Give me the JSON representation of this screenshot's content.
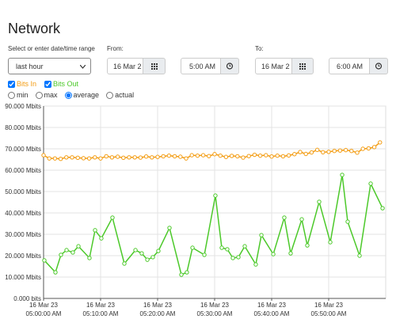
{
  "header": {
    "title": "Network"
  },
  "controls": {
    "range_label": "Select or enter date/time range",
    "range_select": "last hour",
    "from_label": "From:",
    "from_date": "16 Mar 2",
    "from_time": "5:00 AM",
    "to_label": "To:",
    "to_date": "16 Mar 2",
    "to_time": "6:00 AM",
    "series_checked": [
      true,
      true
    ],
    "modes": [
      {
        "label": "min",
        "checked": false
      },
      {
        "label": "max",
        "checked": false
      },
      {
        "label": "average",
        "checked": true
      },
      {
        "label": "actual",
        "checked": false
      }
    ]
  },
  "chart_data": {
    "type": "line",
    "xlim": [
      "2023-03-16 05:00:00",
      "2023-03-16 06:00:00"
    ],
    "xticks": [
      {
        "value": "2023-03-16 05:00:00",
        "label": [
          "16 Mar 23",
          "05:00:00 AM"
        ]
      },
      {
        "value": "2023-03-16 05:10:00",
        "label": [
          "16 Mar 23",
          "05:10:00 AM"
        ]
      },
      {
        "value": "2023-03-16 05:20:00",
        "label": [
          "16 Mar 23",
          "05:20:00 AM"
        ]
      },
      {
        "value": "2023-03-16 05:30:00",
        "label": [
          "16 Mar 23",
          "05:30:00 AM"
        ]
      },
      {
        "value": "2023-03-16 05:40:00",
        "label": [
          "16 Mar 23",
          "05:40:00 AM"
        ]
      },
      {
        "value": "2023-03-16 05:50:00",
        "label": [
          "16 Mar 23",
          "05:50:00 AM"
        ]
      }
    ],
    "ylim": [
      0,
      90
    ],
    "yticks": [
      {
        "value": 0,
        "label": "0.000 bits"
      },
      {
        "value": 10,
        "label": "10.000 Mbits"
      },
      {
        "value": 20,
        "label": "20.000 Mbits"
      },
      {
        "value": 30,
        "label": "30.000 Mbits"
      },
      {
        "value": 40,
        "label": "40.000 Mbits"
      },
      {
        "value": 50,
        "label": "50.000 Mbits"
      },
      {
        "value": 60,
        "label": "60.000 Mbits"
      },
      {
        "value": 70,
        "label": "70.000 Mbits"
      },
      {
        "value": 80,
        "label": "80.000 Mbits"
      },
      {
        "value": 90,
        "label": "90.000 Mbits"
      }
    ],
    "grid": true,
    "series": [
      {
        "name": "Bits In",
        "color": "#f39c12",
        "x": [
          "2023-03-16 05:00:00",
          "2023-03-16 05:01:00",
          "2023-03-16 05:02:00",
          "2023-03-16 05:03:00",
          "2023-03-16 05:04:00",
          "2023-03-16 05:05:00",
          "2023-03-16 05:06:00",
          "2023-03-16 05:07:00",
          "2023-03-16 05:08:00",
          "2023-03-16 05:09:00",
          "2023-03-16 05:10:00",
          "2023-03-16 05:11:00",
          "2023-03-16 05:12:00",
          "2023-03-16 05:13:00",
          "2023-03-16 05:14:00",
          "2023-03-16 05:15:00",
          "2023-03-16 05:16:00",
          "2023-03-16 05:17:00",
          "2023-03-16 05:18:00",
          "2023-03-16 05:19:00",
          "2023-03-16 05:20:00",
          "2023-03-16 05:21:00",
          "2023-03-16 05:22:00",
          "2023-03-16 05:23:00",
          "2023-03-16 05:24:00",
          "2023-03-16 05:25:00",
          "2023-03-16 05:26:00",
          "2023-03-16 05:27:00",
          "2023-03-16 05:28:00",
          "2023-03-16 05:29:00",
          "2023-03-16 05:30:00",
          "2023-03-16 05:31:00",
          "2023-03-16 05:32:00",
          "2023-03-16 05:33:00",
          "2023-03-16 05:34:00",
          "2023-03-16 05:35:00",
          "2023-03-16 05:36:00",
          "2023-03-16 05:37:00",
          "2023-03-16 05:38:00",
          "2023-03-16 05:39:00",
          "2023-03-16 05:40:00",
          "2023-03-16 05:41:00",
          "2023-03-16 05:42:00",
          "2023-03-16 05:43:00",
          "2023-03-16 05:44:00",
          "2023-03-16 05:45:00",
          "2023-03-16 05:46:00",
          "2023-03-16 05:47:00",
          "2023-03-16 05:48:00",
          "2023-03-16 05:49:00",
          "2023-03-16 05:50:00",
          "2023-03-16 05:51:00",
          "2023-03-16 05:52:00",
          "2023-03-16 05:53:00",
          "2023-03-16 05:54:00",
          "2023-03-16 05:55:00",
          "2023-03-16 05:56:00",
          "2023-03-16 05:57:00",
          "2023-03-16 05:58:00",
          "2023-03-16 05:59:00"
        ],
        "values": [
          67.0,
          65.5,
          65.5,
          65.3,
          66,
          66,
          65.8,
          65.6,
          65.5,
          66,
          65.5,
          66.5,
          66,
          66.3,
          65.8,
          66,
          66,
          65.9,
          66.4,
          66,
          66.2,
          66.5,
          66.8,
          66.5,
          66.3,
          65.5,
          67,
          66.8,
          67,
          66.6,
          67.5,
          66.8,
          66.2,
          66.7,
          66.5,
          65.9,
          66.6,
          67.2,
          66.8,
          67,
          66.4,
          66.8,
          66.5,
          66.9,
          67.5,
          68.5,
          67.6,
          68.3,
          69.5,
          68.4,
          68.6,
          69,
          69.2,
          69.4,
          69,
          68.2,
          70,
          70.2,
          70.8,
          73
        ]
      },
      {
        "name": "Bits Out",
        "color": "#4cc92a",
        "x": [
          "2023-03-16 05:00:08",
          "2023-03-16 05:02:05",
          "2023-03-16 05:03:03",
          "2023-03-16 05:04:02",
          "2023-03-16 05:05:08",
          "2023-03-16 05:06:07",
          "2023-03-16 05:08:03",
          "2023-03-16 05:09:02",
          "2023-03-16 05:10:08",
          "2023-03-16 05:12:05",
          "2023-03-16 05:14:10",
          "2023-03-16 05:16:07",
          "2023-03-16 05:17:13",
          "2023-03-16 05:18:12",
          "2023-03-16 05:19:10",
          "2023-03-16 05:20:08",
          "2023-03-16 05:22:05",
          "2023-03-16 05:24:10",
          "2023-03-16 05:25:08",
          "2023-03-16 05:26:07",
          "2023-03-16 05:28:12",
          "2023-03-16 05:30:08",
          "2023-03-16 05:31:15",
          "2023-03-16 05:32:13",
          "2023-03-16 05:33:12",
          "2023-03-16 05:34:10",
          "2023-03-16 05:35:17",
          "2023-03-16 05:37:13",
          "2023-03-16 05:38:12",
          "2023-03-16 05:40:17",
          "2023-03-16 05:42:13",
          "2023-03-16 05:43:20",
          "2023-03-16 05:45:17",
          "2023-03-16 05:46:15",
          "2023-03-16 05:48:20",
          "2023-03-16 05:50:17",
          "2023-03-16 05:52:22",
          "2023-03-16 05:53:20",
          "2023-03-16 05:55:25",
          "2023-03-16 05:57:22",
          "2023-03-16 05:59:27"
        ],
        "values": [
          17.8,
          12.2,
          20.4,
          22.6,
          21.5,
          24.4,
          18.9,
          31.9,
          28.1,
          37.8,
          16.3,
          22.6,
          21.1,
          18.1,
          19.3,
          22.2,
          33.0,
          11.1,
          12.2,
          23.7,
          20.4,
          48.1,
          23.7,
          23.0,
          18.9,
          19.3,
          24.4,
          15.9,
          29.6,
          20.7,
          37.8,
          21.1,
          37.0,
          24.8,
          45.2,
          26.3,
          57.8,
          35.9,
          20.0,
          53.7,
          42.2
        ]
      }
    ]
  }
}
